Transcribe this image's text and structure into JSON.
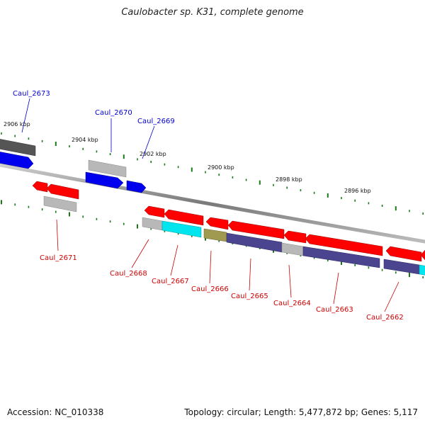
{
  "title": "Caulobacter sp. K31, complete genome",
  "footer": {
    "accession": "Accession: NC_010338",
    "summary": "Topology: circular; Length: 5,477,872 bp; Genes: 5,117"
  },
  "colors": {
    "forward_label": "#0000cc",
    "reverse_label": "#cc0000",
    "backbone": "#808080",
    "tick": "#1a7a1a",
    "gene_blue": "#0000ee",
    "gene_red": "#ff0000",
    "gene_gray": "#b8b8b8",
    "gene_darkgray": "#555555",
    "gene_cyan": "#00e5ee",
    "gene_olive": "#a09a50",
    "gene_navy": "#4b4590"
  },
  "ticks": [
    {
      "label": "2906 kbp"
    },
    {
      "label": "2904 kbp"
    },
    {
      "label": "2902 kbp"
    },
    {
      "label": "2900 kbp"
    },
    {
      "label": "2898 kbp"
    },
    {
      "label": "2896 kbp"
    }
  ],
  "forward_labels": [
    "Caul_2673",
    "Caul_2670",
    "Caul_2669"
  ],
  "reverse_labels": [
    "Caul_2671",
    "Caul_2668",
    "Caul_2667",
    "Caul_2666",
    "Caul_2665",
    "Caul_2664",
    "Caul_2663",
    "Caul_2662"
  ]
}
